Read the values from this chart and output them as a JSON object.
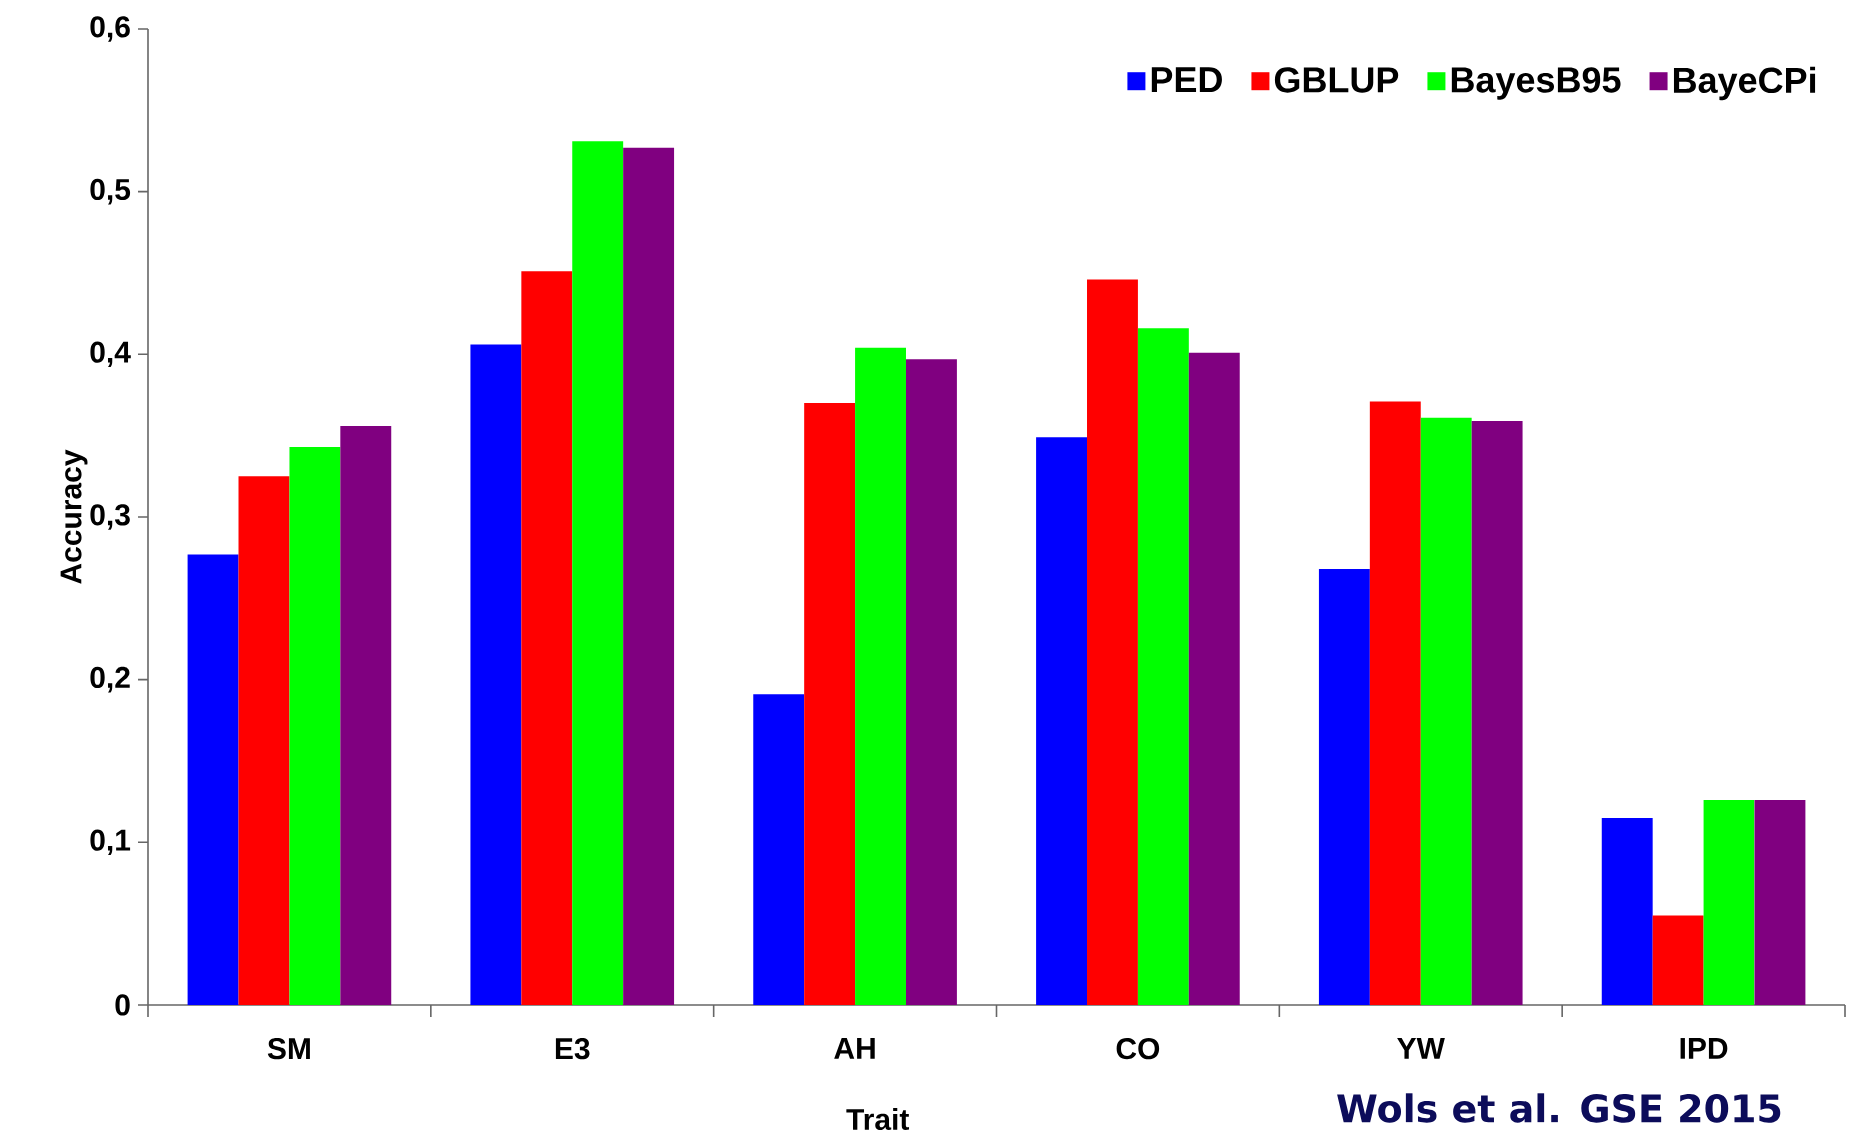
{
  "chart_data": {
    "type": "bar",
    "xlabel": "Trait",
    "ylabel": "Accuracy",
    "categories": [
      "SM",
      "E3",
      "AH",
      "CO",
      "YW",
      "IPD"
    ],
    "series": [
      {
        "name": "PED",
        "color": "#0000ff",
        "values": [
          0.277,
          0.406,
          0.191,
          0.349,
          0.268,
          0.115
        ]
      },
      {
        "name": "GBLUP",
        "color": "#ff0000",
        "values": [
          0.325,
          0.451,
          0.37,
          0.446,
          0.371,
          0.055
        ]
      },
      {
        "name": "BayesB95",
        "color": "#00ff00",
        "values": [
          0.343,
          0.531,
          0.404,
          0.416,
          0.361,
          0.126
        ]
      },
      {
        "name": "BayeCPi",
        "color": "#800080",
        "values": [
          0.356,
          0.527,
          0.397,
          0.401,
          0.359,
          0.126
        ]
      }
    ],
    "ylim": [
      0,
      0.6
    ],
    "yticks": [
      0,
      {
        "value": 0.1,
        "label": "0,1"
      },
      {
        "value": 0.2,
        "label": "0,2"
      },
      {
        "value": 0.3,
        "label": "0,3"
      },
      {
        "value": 0.4,
        "label": "0,4"
      },
      {
        "value": 0.5,
        "label": "0,5"
      },
      {
        "value": 0.6,
        "label": "0,6"
      }
    ],
    "legend": "top right",
    "grid": false,
    "annotations": [
      "Wols et al. GSE 2015"
    ]
  }
}
